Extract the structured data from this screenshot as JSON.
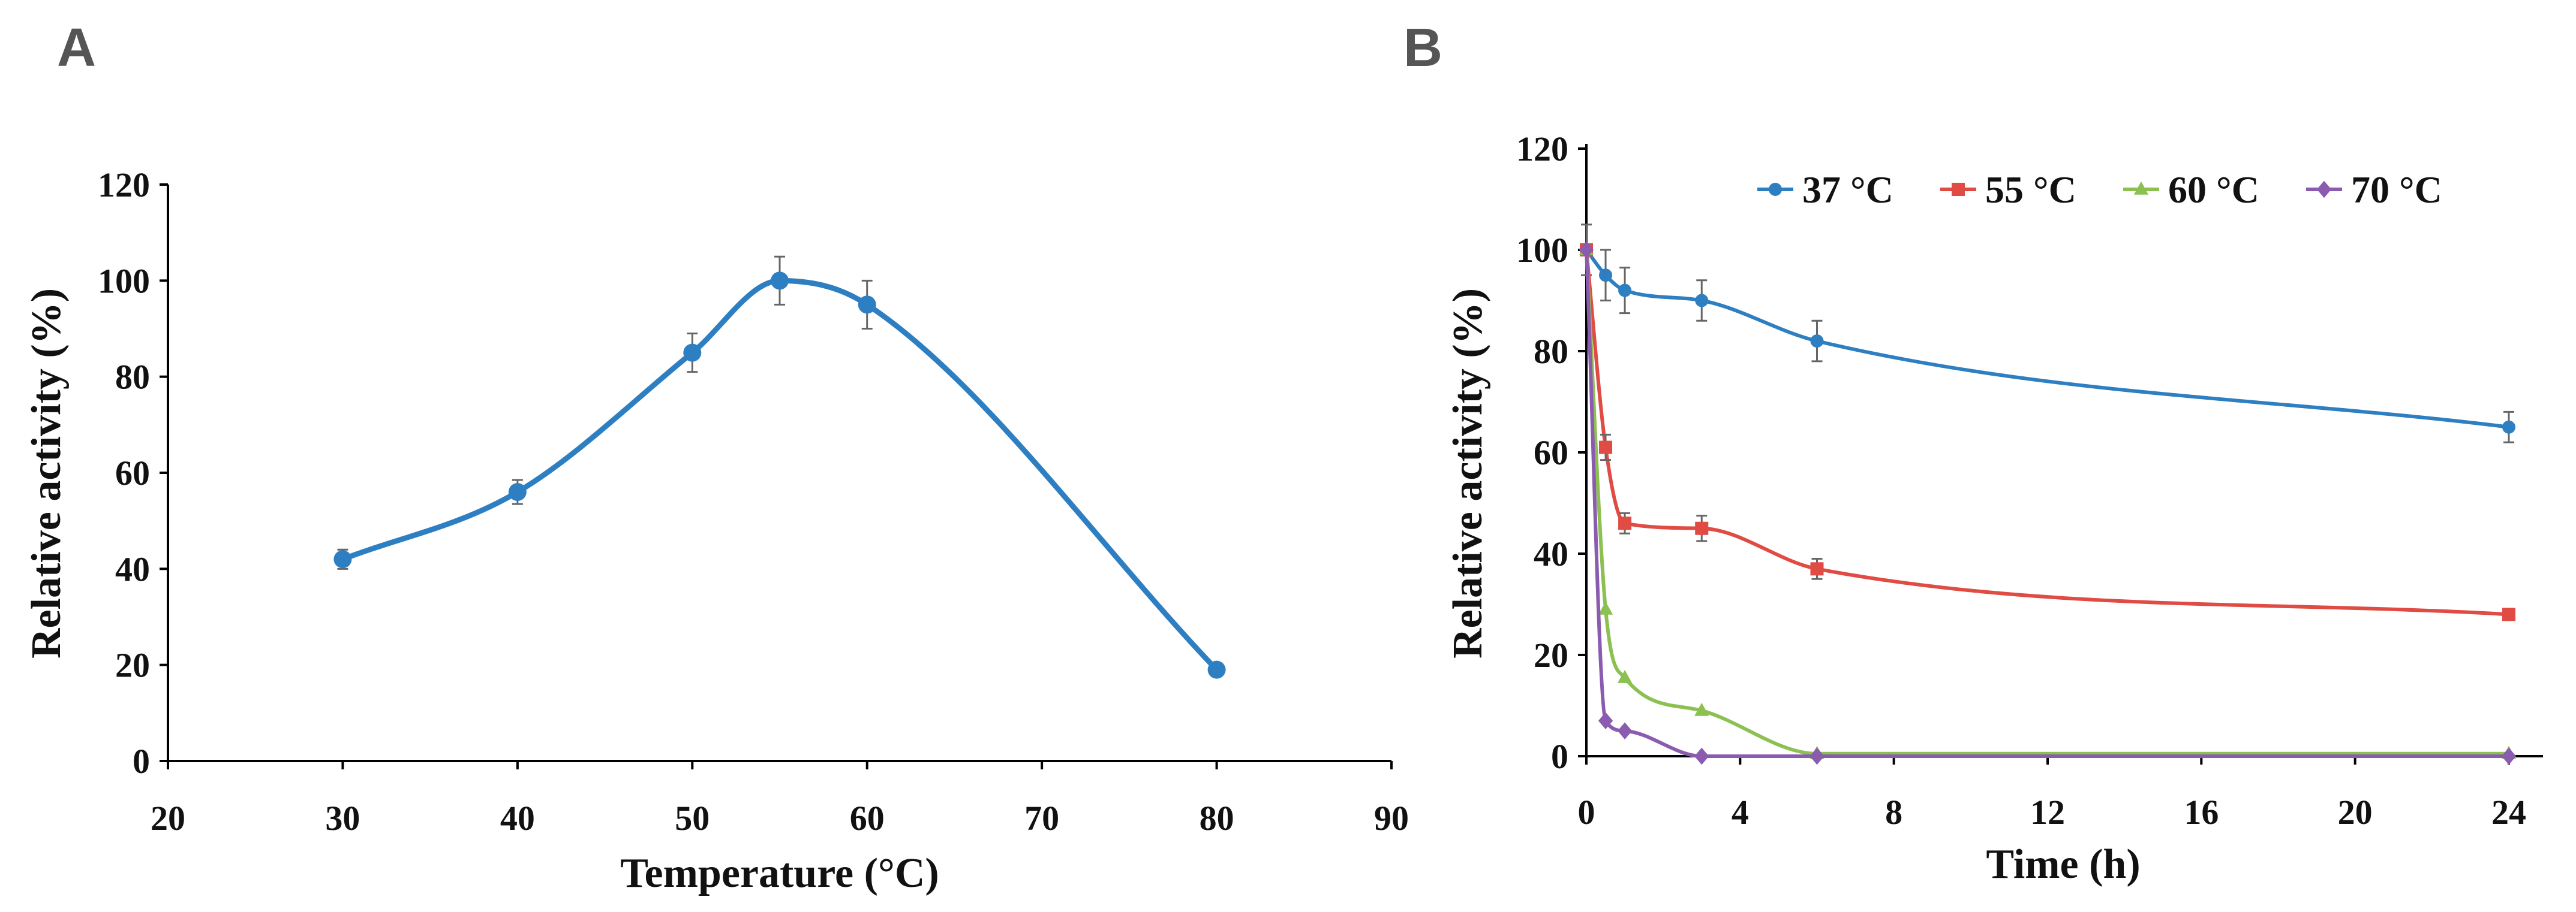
{
  "chart_data": [
    {
      "panel": "A",
      "type": "line",
      "title": "",
      "xlabel": "Temperature (°C)",
      "ylabel": "Relative activity  (%)",
      "xlim": [
        20,
        90
      ],
      "ylim": [
        0,
        120
      ],
      "xticks": [
        "20",
        "30",
        "40",
        "50",
        "60",
        "70",
        "80",
        "90"
      ],
      "yticks": [
        "0",
        "20",
        "40",
        "60",
        "80",
        "100",
        "120"
      ],
      "grid": false,
      "series": [
        {
          "name": "Relative activity",
          "color": "#2E7FC2",
          "marker": "circle",
          "x": [
            30,
            40,
            50,
            55,
            60,
            80
          ],
          "y": [
            42,
            56,
            85,
            100,
            95,
            19
          ],
          "err": [
            2,
            2.5,
            4,
            5,
            5,
            1
          ]
        }
      ]
    },
    {
      "panel": "B",
      "type": "line",
      "title": "",
      "xlabel": "Time (h)",
      "ylabel": "Relative activity  (%)",
      "xlim": [
        0,
        24
      ],
      "ylim": [
        0,
        120
      ],
      "xticks": [
        "0",
        "4",
        "8",
        "12",
        "16",
        "20",
        "24"
      ],
      "yticks": [
        "0",
        "20",
        "40",
        "60",
        "80",
        "100",
        "120"
      ],
      "grid": false,
      "legend_position": "top",
      "series": [
        {
          "name": "37 °C",
          "color": "#2E7FC2",
          "marker": "circle",
          "x": [
            0,
            0.5,
            1,
            3,
            6,
            24
          ],
          "y": [
            100,
            95,
            92,
            90,
            82,
            65
          ],
          "err": [
            5,
            5,
            4.5,
            4,
            4,
            3
          ]
        },
        {
          "name": "55 °C",
          "color": "#E04B43",
          "marker": "square",
          "x": [
            0,
            0.5,
            1,
            3,
            6,
            24
          ],
          "y": [
            100,
            61,
            46,
            45,
            37,
            28
          ],
          "err": [
            0,
            2.5,
            2,
            2.5,
            2,
            1
          ]
        },
        {
          "name": "60 °C",
          "color": "#8CC152",
          "marker": "triangle",
          "x": [
            0,
            0.5,
            1,
            3,
            6,
            24
          ],
          "y": [
            100,
            29,
            15.5,
            9,
            0.5,
            0.5
          ],
          "err": [
            0,
            0,
            0,
            0,
            0,
            0
          ]
        },
        {
          "name": "70 °C",
          "color": "#8A5BAF",
          "marker": "diamond",
          "x": [
            0,
            0.5,
            1,
            3,
            6,
            24
          ],
          "y": [
            100,
            7,
            5,
            0,
            0,
            0
          ],
          "err": [
            0,
            0,
            0,
            0,
            0,
            0
          ]
        }
      ]
    }
  ]
}
